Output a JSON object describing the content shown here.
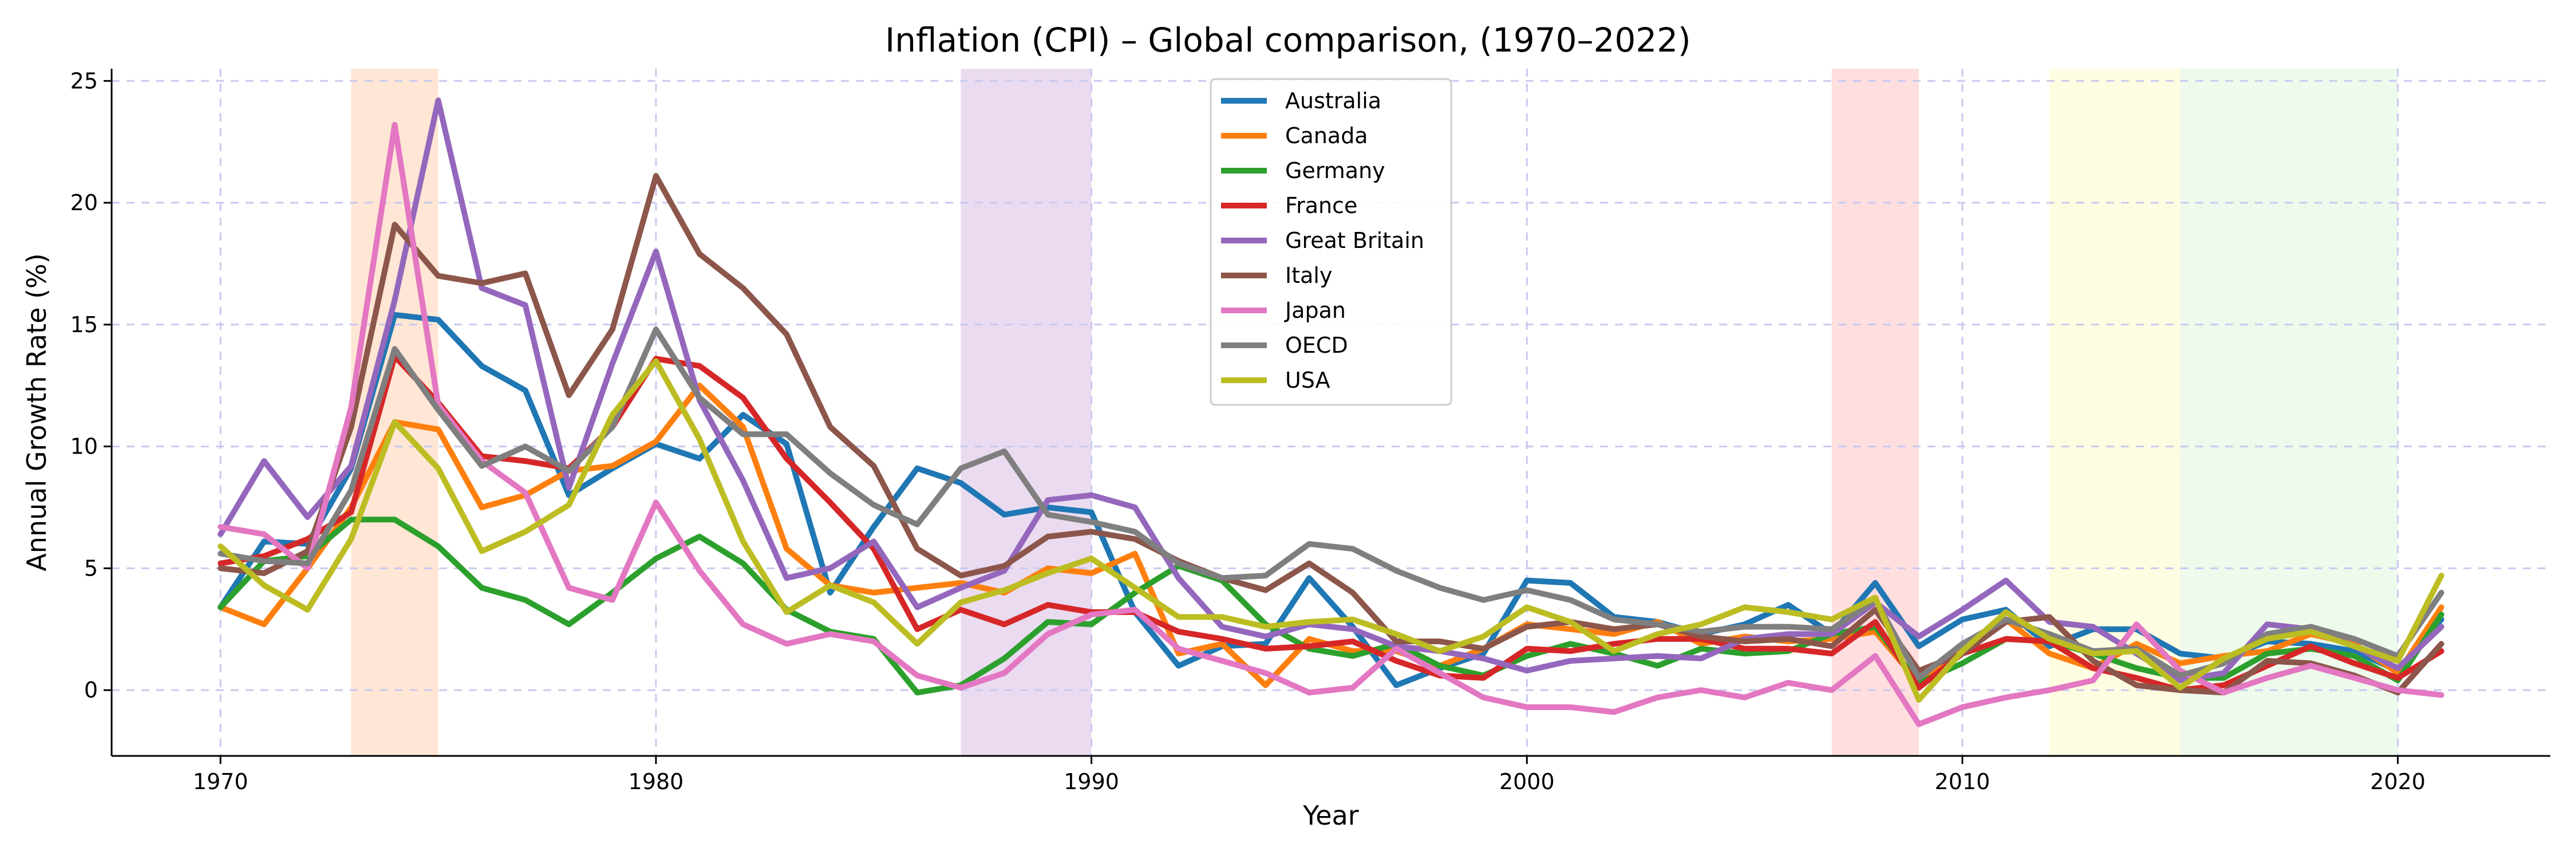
{
  "chart_data": {
    "type": "line",
    "title": "Inflation (CPI) – Global comparison, (1970–2022)",
    "xlabel": "Year",
    "ylabel": "Annual Growth Rate (%)",
    "xlim": [
      1967.5,
      2023.5
    ],
    "ylim": [
      -2.7,
      25.5
    ],
    "xticks": [
      1970,
      1980,
      1990,
      2000,
      2010,
      2020
    ],
    "yticks": [
      0,
      5,
      10,
      15,
      20,
      25
    ],
    "grid": true,
    "legend_position": "top-center",
    "shaded_periods": [
      {
        "start": 1973,
        "end": 1975,
        "color": "#ffd2b3"
      },
      {
        "start": 1987,
        "end": 1990,
        "color": "#d8bde4"
      },
      {
        "start": 2007,
        "end": 2009,
        "color": "#ffc2c7"
      },
      {
        "start": 2012,
        "end": 2015,
        "color": "#fffbc9"
      },
      {
        "start": 2015,
        "end": 2020,
        "color": "#dff6dd"
      }
    ],
    "x": [
      1970,
      1971,
      1972,
      1973,
      1974,
      1975,
      1976,
      1977,
      1978,
      1979,
      1980,
      1981,
      1982,
      1983,
      1984,
      1985,
      1986,
      1987,
      1988,
      1989,
      1990,
      1991,
      1992,
      1993,
      1994,
      1995,
      1996,
      1997,
      1998,
      1999,
      2000,
      2001,
      2002,
      2003,
      2004,
      2005,
      2006,
      2007,
      2008,
      2009,
      2010,
      2011,
      2012,
      2013,
      2014,
      2015,
      2016,
      2017,
      2018,
      2019,
      2020,
      2021
    ],
    "series": [
      {
        "name": "Australia",
        "color": "#1f77b4",
        "values": [
          3.4,
          6.1,
          6.0,
          9.1,
          15.4,
          15.2,
          13.3,
          12.3,
          8.0,
          9.1,
          10.1,
          9.5,
          11.3,
          10.1,
          4.0,
          6.7,
          9.1,
          8.5,
          7.2,
          7.5,
          7.3,
          3.2,
          1.0,
          1.8,
          1.9,
          4.6,
          2.6,
          0.2,
          0.9,
          1.5,
          4.5,
          4.4,
          3.0,
          2.8,
          2.3,
          2.7,
          3.5,
          2.3,
          4.4,
          1.8,
          2.9,
          3.3,
          1.8,
          2.5,
          2.5,
          1.5,
          1.3,
          2.0,
          1.9,
          1.6,
          0.8,
          2.9
        ]
      },
      {
        "name": "Canada",
        "color": "#ff7f0e",
        "values": [
          3.4,
          2.7,
          5.0,
          7.5,
          11.0,
          10.7,
          7.5,
          8.0,
          9.0,
          9.2,
          10.2,
          12.5,
          10.8,
          5.8,
          4.3,
          4.0,
          4.2,
          4.4,
          4.0,
          5.0,
          4.8,
          5.6,
          1.5,
          1.9,
          0.2,
          2.1,
          1.6,
          1.6,
          1.0,
          1.7,
          2.7,
          2.5,
          2.3,
          2.8,
          1.9,
          2.2,
          2.0,
          2.1,
          2.4,
          0.3,
          1.8,
          2.9,
          1.5,
          0.9,
          1.9,
          1.1,
          1.4,
          1.6,
          2.3,
          1.9,
          0.7,
          3.4
        ]
      },
      {
        "name": "Germany",
        "color": "#2ca02c",
        "values": [
          3.4,
          5.3,
          5.5,
          7.0,
          7.0,
          5.9,
          4.2,
          3.7,
          2.7,
          4.0,
          5.4,
          6.3,
          5.2,
          3.3,
          2.4,
          2.1,
          -0.1,
          0.2,
          1.3,
          2.8,
          2.7,
          4.0,
          5.1,
          4.5,
          2.7,
          1.7,
          1.4,
          1.9,
          1.0,
          0.6,
          1.4,
          1.9,
          1.5,
          1.0,
          1.7,
          1.5,
          1.6,
          2.3,
          2.6,
          0.3,
          1.1,
          2.1,
          2.0,
          1.5,
          0.9,
          0.5,
          0.5,
          1.5,
          1.7,
          1.4,
          0.4,
          3.1
        ]
      },
      {
        "name": "France",
        "color": "#d62728",
        "values": [
          5.2,
          5.5,
          6.2,
          7.3,
          13.7,
          11.8,
          9.6,
          9.4,
          9.1,
          10.8,
          13.6,
          13.3,
          12.0,
          9.5,
          7.7,
          5.8,
          2.5,
          3.3,
          2.7,
          3.5,
          3.2,
          3.2,
          2.4,
          2.1,
          1.7,
          1.8,
          2.0,
          1.2,
          0.6,
          0.5,
          1.7,
          1.6,
          1.9,
          2.1,
          2.1,
          1.7,
          1.7,
          1.5,
          2.8,
          0.1,
          1.5,
          2.1,
          2.0,
          0.9,
          0.5,
          0.0,
          0.2,
          1.0,
          1.8,
          1.1,
          0.5,
          1.6
        ]
      },
      {
        "name": "Great Britain",
        "color": "#9467bd",
        "values": [
          6.4,
          9.4,
          7.1,
          9.2,
          16.0,
          24.2,
          16.5,
          15.8,
          8.3,
          13.4,
          18.0,
          11.9,
          8.6,
          4.6,
          5.0,
          6.1,
          3.4,
          4.2,
          4.9,
          7.8,
          8.0,
          7.5,
          4.6,
          2.6,
          2.2,
          2.7,
          2.5,
          1.8,
          1.6,
          1.3,
          0.8,
          1.2,
          1.3,
          1.4,
          1.3,
          2.1,
          2.3,
          2.3,
          3.6,
          2.2,
          3.3,
          4.5,
          2.8,
          2.6,
          1.5,
          0.4,
          0.7,
          2.7,
          2.5,
          1.8,
          0.9,
          2.6
        ]
      },
      {
        "name": "Italy",
        "color": "#8c564b",
        "values": [
          5.0,
          4.8,
          5.7,
          10.8,
          19.1,
          17.0,
          16.7,
          17.1,
          12.1,
          14.8,
          21.1,
          17.9,
          16.5,
          14.6,
          10.8,
          9.2,
          5.8,
          4.7,
          5.1,
          6.3,
          6.5,
          6.2,
          5.3,
          4.6,
          4.1,
          5.2,
          4.0,
          2.0,
          2.0,
          1.7,
          2.6,
          2.8,
          2.5,
          2.7,
          2.2,
          2.0,
          2.1,
          1.8,
          3.3,
          0.8,
          1.5,
          2.8,
          3.0,
          1.2,
          0.2,
          0.0,
          -0.1,
          1.2,
          1.1,
          0.6,
          -0.1,
          1.9
        ]
      },
      {
        "name": "Japan",
        "color": "#e377c2",
        "values": [
          6.7,
          6.4,
          5.0,
          11.6,
          23.2,
          11.7,
          9.4,
          8.1,
          4.2,
          3.7,
          7.7,
          4.9,
          2.7,
          1.9,
          2.3,
          2.0,
          0.6,
          0.1,
          0.7,
          2.3,
          3.1,
          3.3,
          1.7,
          1.2,
          0.7,
          -0.1,
          0.1,
          1.7,
          0.7,
          -0.3,
          -0.7,
          -0.7,
          -0.9,
          -0.3,
          0.0,
          -0.3,
          0.3,
          0.0,
          1.4,
          -1.4,
          -0.7,
          -0.3,
          0.0,
          0.4,
          2.7,
          0.8,
          -0.1,
          0.5,
          1.0,
          0.5,
          0.0,
          -0.2
        ]
      },
      {
        "name": "OECD",
        "color": "#7f7f7f",
        "values": [
          5.6,
          5.3,
          5.2,
          8.2,
          14.0,
          11.5,
          9.2,
          10.0,
          9.0,
          10.8,
          14.8,
          12.0,
          10.5,
          10.5,
          8.9,
          7.6,
          6.8,
          9.1,
          9.8,
          7.2,
          6.9,
          6.5,
          5.2,
          4.6,
          4.7,
          6.0,
          5.8,
          4.9,
          4.2,
          3.7,
          4.1,
          3.7,
          2.9,
          2.7,
          2.4,
          2.6,
          2.6,
          2.5,
          3.7,
          0.5,
          1.9,
          2.9,
          2.3,
          1.6,
          1.7,
          0.6,
          1.1,
          2.3,
          2.6,
          2.1,
          1.4,
          4.0
        ]
      },
      {
        "name": "USA",
        "color": "#bcbd22",
        "values": [
          5.9,
          4.3,
          3.3,
          6.2,
          11.0,
          9.1,
          5.7,
          6.5,
          7.6,
          11.3,
          13.5,
          10.3,
          6.1,
          3.2,
          4.3,
          3.6,
          1.9,
          3.6,
          4.1,
          4.8,
          5.4,
          4.2,
          3.0,
          3.0,
          2.6,
          2.8,
          2.9,
          2.3,
          1.6,
          2.2,
          3.4,
          2.8,
          1.6,
          2.3,
          2.7,
          3.4,
          3.2,
          2.9,
          3.8,
          -0.4,
          1.6,
          3.2,
          2.1,
          1.5,
          1.6,
          0.1,
          1.3,
          2.1,
          2.4,
          1.8,
          1.2,
          4.7
        ]
      }
    ]
  }
}
